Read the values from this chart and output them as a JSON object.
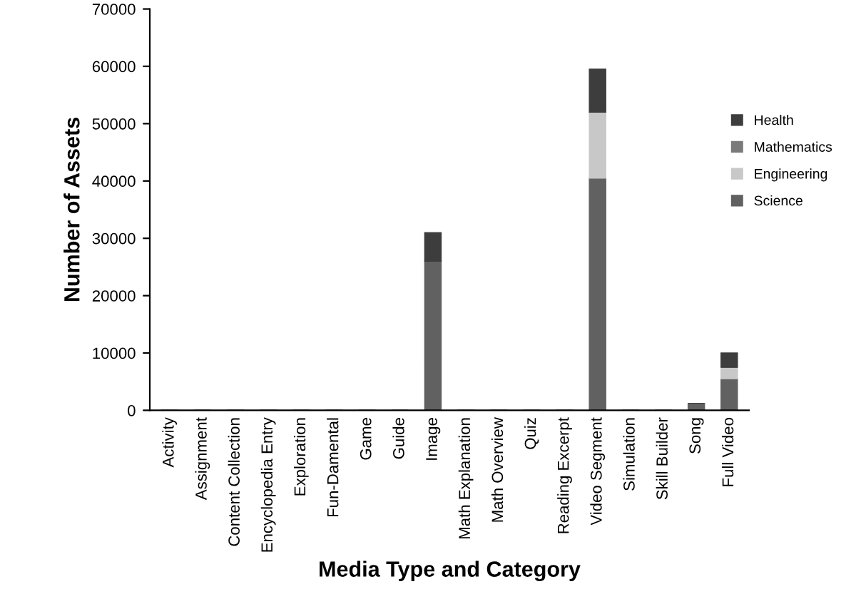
{
  "chart_data": {
    "type": "bar",
    "stacked": true,
    "xlabel": "Media Type and Category",
    "ylabel": "Number of Assets",
    "categories": [
      "Activity",
      "Assignment",
      "Content Collection",
      "Encyclopedia Entry",
      "Exploration",
      "Fun-Damental",
      "Game",
      "Guide",
      "Image",
      "Math Explanation",
      "Math Overview",
      "Quiz",
      "Reading Excerpt",
      "Video Segment",
      "Simulation",
      "Skill Builder",
      "Song",
      "Full Video"
    ],
    "series": [
      {
        "name": "Science",
        "color": "#616161",
        "values": [
          0,
          0,
          0,
          0,
          0,
          0,
          0,
          0,
          26000,
          0,
          0,
          0,
          0,
          40500,
          0,
          0,
          1200,
          5500
        ]
      },
      {
        "name": "Engineering",
        "color": "#c8c8c8",
        "values": [
          0,
          0,
          0,
          0,
          0,
          0,
          0,
          0,
          0,
          0,
          0,
          0,
          0,
          11500,
          0,
          0,
          0,
          2000
        ]
      },
      {
        "name": "Mathematics",
        "color": "#7a7a7a",
        "values": [
          0,
          0,
          0,
          0,
          0,
          0,
          0,
          0,
          0,
          0,
          0,
          0,
          0,
          0,
          0,
          0,
          0,
          0
        ]
      },
      {
        "name": "Health",
        "color": "#3d3d3d",
        "values": [
          0,
          0,
          0,
          0,
          0,
          0,
          0,
          0,
          5000,
          0,
          0,
          0,
          0,
          7500,
          0,
          0,
          0,
          2500
        ]
      }
    ],
    "ylim": [
      0,
      70000
    ],
    "yticks": [
      0,
      10000,
      20000,
      30000,
      40000,
      50000,
      60000,
      70000
    ],
    "grid": false,
    "legend": "right"
  }
}
